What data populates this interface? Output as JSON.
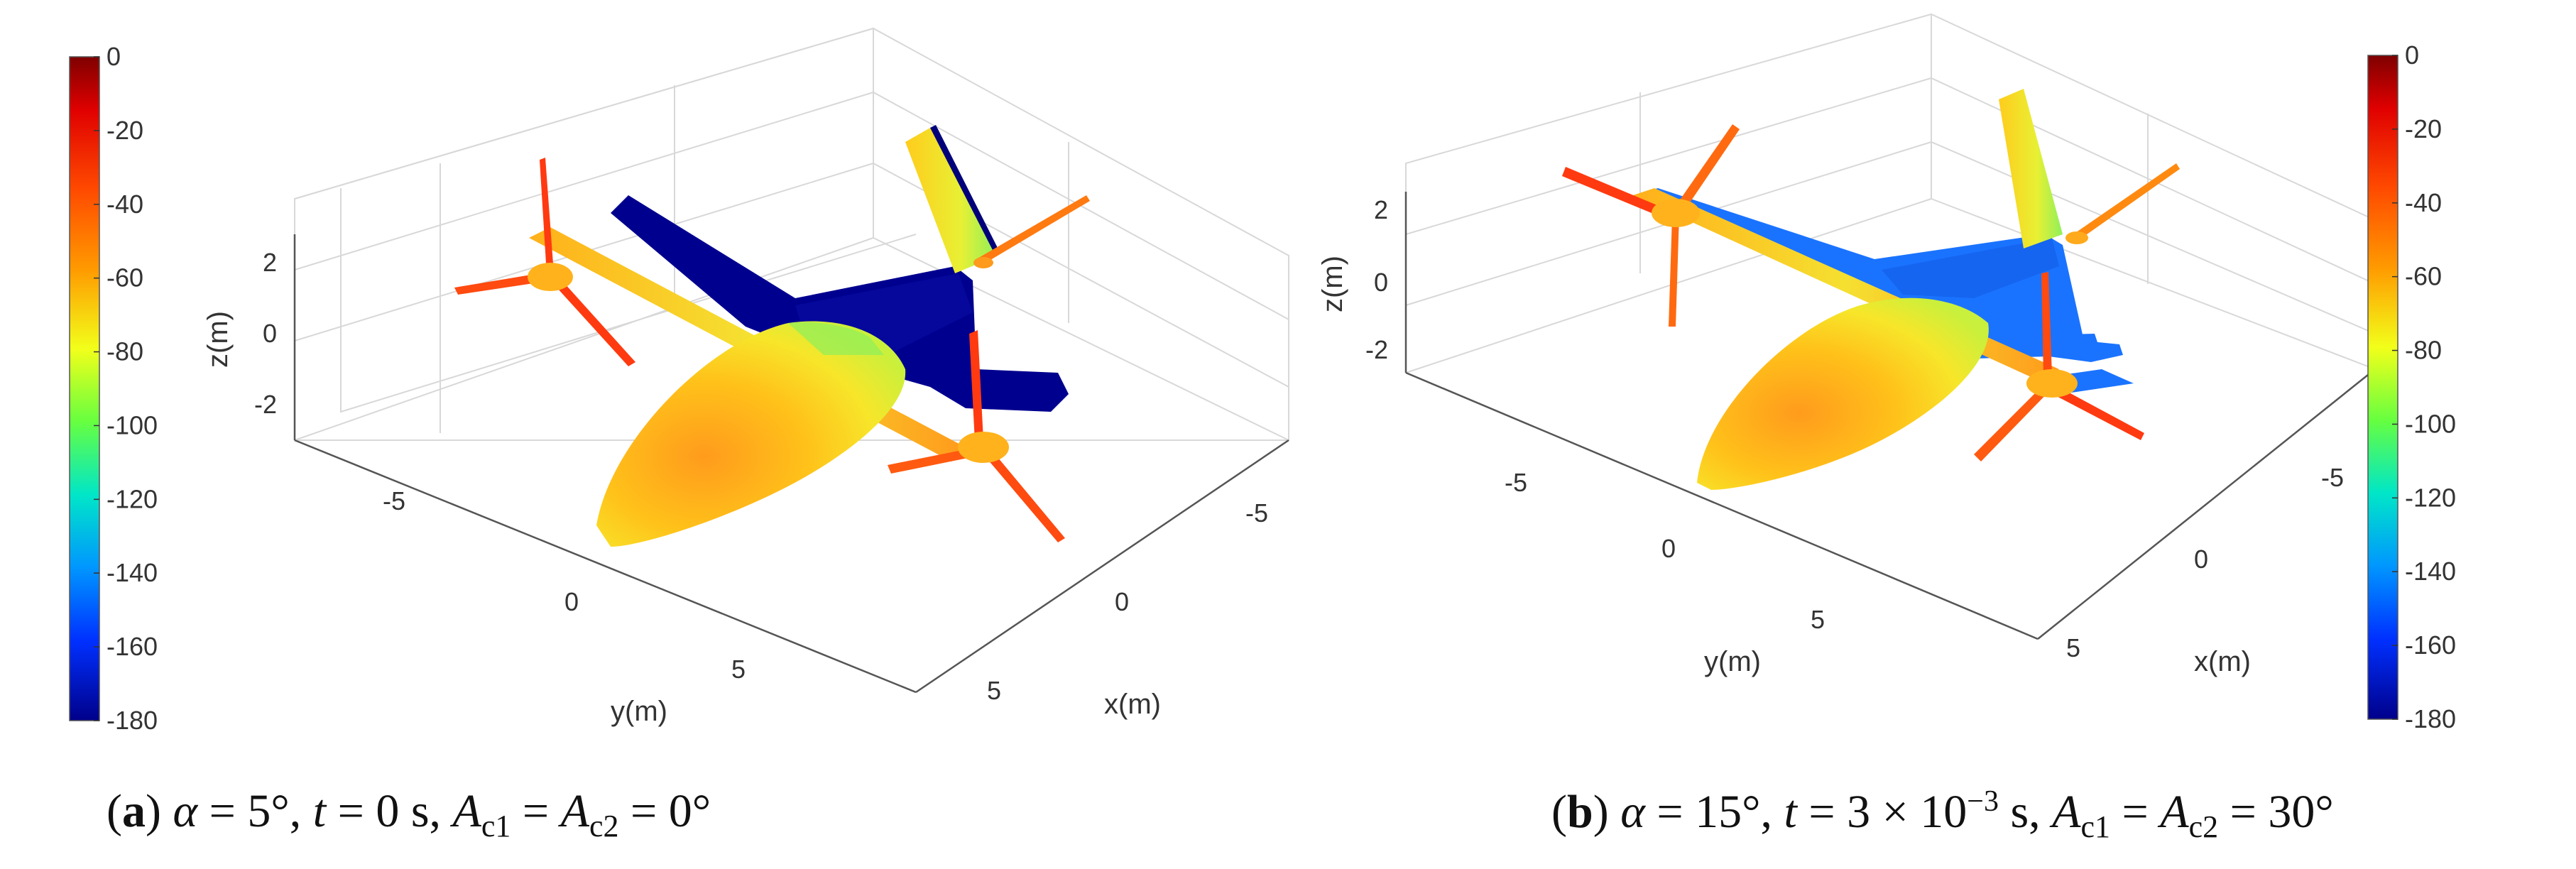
{
  "chart_data": [
    {
      "type": "3d-surface",
      "panel": "a",
      "zlabel": "z(m)",
      "ylabel": "y(m)",
      "xlabel": "x(m)",
      "z_ticks": [
        "2",
        "0",
        "-2"
      ],
      "y_ticks": [
        "-5",
        "0",
        "5"
      ],
      "x_ticks": [
        "-5",
        "0",
        "5"
      ],
      "colorbar": {
        "position": "left",
        "range": [
          -180,
          0
        ],
        "ticks": [
          "0",
          "-20",
          "-40",
          "-60",
          "-80",
          "-100",
          "-120",
          "-140",
          "-160",
          "-180"
        ],
        "colormap": [
          "#7f0000",
          "#ff1a00",
          "#ff9900",
          "#e6ff1a",
          "#33ff66",
          "#00ccff",
          "#0050ff",
          "#00008f"
        ]
      },
      "caption": {
        "letter": "a",
        "alpha": "5°",
        "t": "0 s",
        "A": "0°"
      }
    },
    {
      "type": "3d-surface",
      "panel": "b",
      "zlabel": "z(m)",
      "ylabel": "y(m)",
      "xlabel": "x(m)",
      "z_ticks": [
        "2",
        "0",
        "-2"
      ],
      "y_ticks": [
        "-5",
        "0",
        "5"
      ],
      "x_ticks": [
        "-5",
        "0",
        "5"
      ],
      "colorbar": {
        "position": "right",
        "range": [
          -180,
          0
        ],
        "ticks": [
          "0",
          "-20",
          "-40",
          "-60",
          "-80",
          "-100",
          "-120",
          "-140",
          "-160",
          "-180"
        ],
        "colormap": [
          "#7f0000",
          "#ff1a00",
          "#ff9900",
          "#e6ff1a",
          "#33ff66",
          "#00ccff",
          "#0050ff",
          "#00008f"
        ]
      },
      "caption": {
        "letter": "b",
        "alpha": "15°",
        "t_mantissa": "3",
        "t_exp": "−3",
        "t_unit": "s",
        "A": "30°"
      }
    }
  ]
}
